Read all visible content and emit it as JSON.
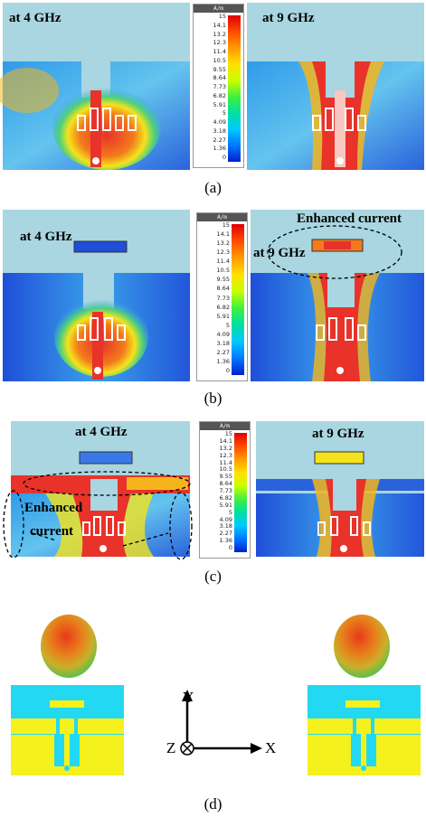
{
  "panels": {
    "a": {
      "caption": "(a)",
      "left_label": "at 4 GHz",
      "right_label": "at 9 GHz"
    },
    "b": {
      "caption": "(b)",
      "left_label": "at 4 GHz",
      "right_label": "at 9 GHz",
      "annotation": "Enhanced current"
    },
    "c": {
      "caption": "(c)",
      "left_label": "at 4 GHz",
      "right_label": "at 9 GHz",
      "annotation_line1": "Enhanced",
      "annotation_line2": "current"
    },
    "d": {
      "caption": "(d)"
    }
  },
  "colorbar": {
    "unit": "A/m",
    "ticks": [
      "15",
      "14.1",
      "13.2",
      "12.3",
      "11.4",
      "10.5",
      "9.55",
      "8.64",
      "7.73",
      "6.82",
      "5.91",
      "5",
      "4.09",
      "3.18",
      "2.27",
      "1.36",
      "0"
    ]
  },
  "axes": {
    "x": "X",
    "y": "Y",
    "z": "Z"
  },
  "colors": {
    "substrate_cyan": "#23d8f2",
    "metal_yellow": "#f4f11c",
    "field_blue": "#1f6ee8",
    "field_red": "#e8322a"
  }
}
